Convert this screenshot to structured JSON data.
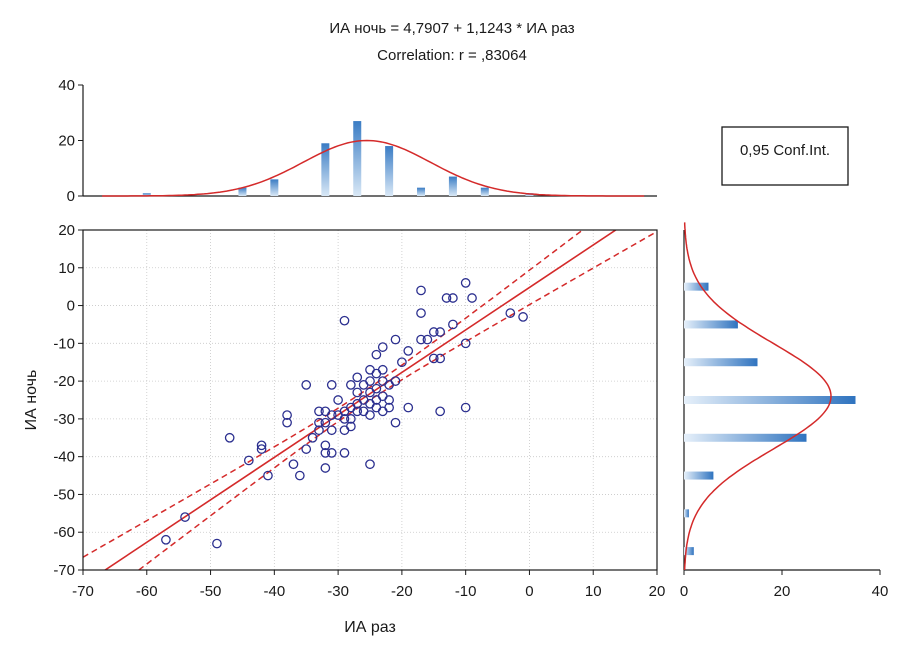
{
  "chart_data": {
    "type": "scatter",
    "title": "ИА ночь = 4,7907 + 1,1243 * ИА раз",
    "subtitle": "Correlation: r = ,83064",
    "xlabel": "ИА раз",
    "ylabel": "ИА ночь",
    "xlim": [
      -70,
      20
    ],
    "ylim": [
      -70,
      20
    ],
    "x_ticks": [
      "-70",
      "-60",
      "-50",
      "-40",
      "-30",
      "-20",
      "-10",
      "0",
      "10",
      "20"
    ],
    "y_ticks": [
      "20",
      "10",
      "0",
      "-10",
      "-20",
      "-30",
      "-40",
      "-50",
      "-60",
      "-70"
    ],
    "regression": {
      "intercept": 4.7907,
      "slope": 1.1243
    },
    "confidence_label": "0,95 Conf.Int.",
    "points": [
      [
        -57,
        -62
      ],
      [
        -54,
        -56
      ],
      [
        -49,
        -63
      ],
      [
        -47,
        -35
      ],
      [
        -44,
        -41
      ],
      [
        -42,
        -37
      ],
      [
        -42,
        -38
      ],
      [
        -41,
        -45
      ],
      [
        -38,
        -29
      ],
      [
        -38,
        -31
      ],
      [
        -37,
        -42
      ],
      [
        -36,
        -45
      ],
      [
        -35,
        -21
      ],
      [
        -35,
        -38
      ],
      [
        -34,
        -35
      ],
      [
        -33,
        -28
      ],
      [
        -33,
        -31
      ],
      [
        -33,
        -33
      ],
      [
        -32,
        -28
      ],
      [
        -32,
        -31
      ],
      [
        -32,
        -37
      ],
      [
        -32,
        -39
      ],
      [
        -32,
        -43
      ],
      [
        -31,
        -21
      ],
      [
        -31,
        -29
      ],
      [
        -31,
        -33
      ],
      [
        -31,
        -39
      ],
      [
        -30,
        -25
      ],
      [
        -30,
        -29
      ],
      [
        -29,
        -4
      ],
      [
        -29,
        -28
      ],
      [
        -29,
        -30
      ],
      [
        -29,
        -33
      ],
      [
        -29,
        -39
      ],
      [
        -28,
        -21
      ],
      [
        -28,
        -27
      ],
      [
        -28,
        -30
      ],
      [
        -28,
        -32
      ],
      [
        -27,
        -19
      ],
      [
        -27,
        -23
      ],
      [
        -27,
        -26
      ],
      [
        -27,
        -28
      ],
      [
        -26,
        -21
      ],
      [
        -26,
        -25
      ],
      [
        -26,
        -28
      ],
      [
        -25,
        -17
      ],
      [
        -25,
        -20
      ],
      [
        -25,
        -23
      ],
      [
        -25,
        -26
      ],
      [
        -25,
        -29
      ],
      [
        -25,
        -42
      ],
      [
        -24,
        -13
      ],
      [
        -24,
        -18
      ],
      [
        -24,
        -22
      ],
      [
        -24,
        -25
      ],
      [
        -24,
        -27
      ],
      [
        -23,
        -11
      ],
      [
        -23,
        -17
      ],
      [
        -23,
        -20
      ],
      [
        -23,
        -24
      ],
      [
        -23,
        -28
      ],
      [
        -22,
        -21
      ],
      [
        -22,
        -25
      ],
      [
        -22,
        -27
      ],
      [
        -21,
        -9
      ],
      [
        -21,
        -20
      ],
      [
        -21,
        -31
      ],
      [
        -20,
        -15
      ],
      [
        -19,
        -12
      ],
      [
        -19,
        -27
      ],
      [
        -17,
        -9
      ],
      [
        -17,
        -2
      ],
      [
        -17,
        4
      ],
      [
        -16,
        -9
      ],
      [
        -15,
        -7
      ],
      [
        -15,
        -14
      ],
      [
        -14,
        -7
      ],
      [
        -14,
        -14
      ],
      [
        -14,
        -28
      ],
      [
        -13,
        2
      ],
      [
        -12,
        -5
      ],
      [
        -12,
        2
      ],
      [
        -10,
        6
      ],
      [
        -10,
        -10
      ],
      [
        -10,
        -27
      ],
      [
        -9,
        2
      ],
      [
        -3,
        -2
      ],
      [
        -1,
        -3
      ]
    ],
    "x_histogram": {
      "ylim": [
        0,
        40
      ],
      "y_ticks": [
        "40",
        "20",
        "0"
      ],
      "bins": [
        {
          "x": -60,
          "count": 1
        },
        {
          "x": -55,
          "count": 0
        },
        {
          "x": -50,
          "count": 0
        },
        {
          "x": -45,
          "count": 3
        },
        {
          "x": -40,
          "count": 6
        },
        {
          "x": -35,
          "count": 0
        },
        {
          "x": -32,
          "count": 19
        },
        {
          "x": -27,
          "count": 27
        },
        {
          "x": -22,
          "count": 18
        },
        {
          "x": -17,
          "count": 3
        },
        {
          "x": -12,
          "count": 7
        },
        {
          "x": -7,
          "count": 3
        },
        {
          "x": 0,
          "count": 1
        }
      ],
      "normal_fit": {
        "mean": -25.5,
        "sd": 10,
        "peak": 20
      }
    },
    "y_histogram": {
      "xlim": [
        0,
        40
      ],
      "x_ticks": [
        "0",
        "20",
        "40"
      ],
      "bins": [
        {
          "y": 5,
          "count": 5
        },
        {
          "y": -5,
          "count": 11
        },
        {
          "y": -15,
          "count": 15
        },
        {
          "y": -25,
          "count": 35
        },
        {
          "y": -35,
          "count": 25
        },
        {
          "y": -45,
          "count": 6
        },
        {
          "y": -55,
          "count": 1
        },
        {
          "y": -65,
          "count": 2
        }
      ],
      "normal_fit": {
        "mean": -24,
        "sd": 14,
        "peak": 30
      }
    },
    "colors": {
      "points": "#2b2f8f",
      "fit_line": "#d42a2a",
      "bars_dark": "#3a7cc4",
      "bars_light": "#d9e8f6",
      "grid": "#c8c8c8"
    }
  }
}
